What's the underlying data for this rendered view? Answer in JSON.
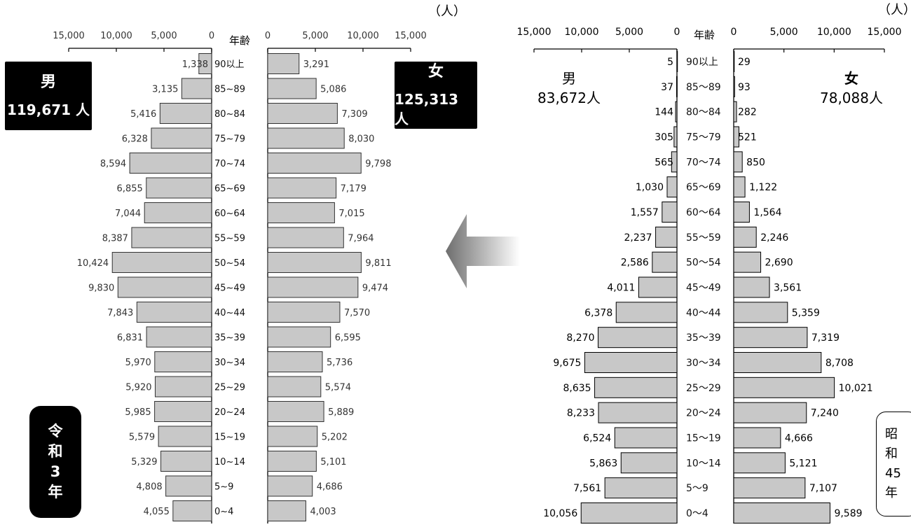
{
  "chart_data": [
    {
      "type": "bar",
      "orientation": "horizontal-population-pyramid",
      "era_label": "令和3年",
      "unit_label": "（人）",
      "age_header": "年齢",
      "x_ticks_male": [
        "15,000",
        "10,000",
        "5,000",
        "0"
      ],
      "x_ticks_female": [
        "0",
        "5,000",
        "10,000",
        "15,000"
      ],
      "xlim": [
        0,
        15000
      ],
      "categories": [
        "90以上",
        "85~89",
        "80~84",
        "75~79",
        "70~74",
        "65~69",
        "60~64",
        "55~59",
        "50~54",
        "45~49",
        "40~44",
        "35~39",
        "30~34",
        "25~29",
        "20~24",
        "15~19",
        "10~14",
        "5~9",
        "0~4"
      ],
      "series": [
        {
          "name": "男",
          "total": "119,671 人",
          "values": [
            1338,
            3135,
            5416,
            6328,
            8594,
            6855,
            7044,
            8387,
            10424,
            9830,
            7843,
            6831,
            5970,
            5920,
            5985,
            5579,
            5329,
            4808,
            4055
          ],
          "labels": [
            "1,338",
            "3,135",
            "5,416",
            "6,328",
            "8,594",
            "6,855",
            "7,044",
            "8,387",
            "10,424",
            "9,830",
            "7,843",
            "6,831",
            "5,970",
            "5,920",
            "5,985",
            "5,579",
            "5,329",
            "4,808",
            "4,055"
          ]
        },
        {
          "name": "女",
          "total": "125,313 人",
          "values": [
            3291,
            5086,
            7309,
            8030,
            9798,
            7179,
            7015,
            7964,
            9811,
            9474,
            7570,
            6595,
            5736,
            5574,
            5889,
            5202,
            5101,
            4686,
            4003
          ],
          "labels": [
            "3,291",
            "5,086",
            "7,309",
            "8,030",
            "9,798",
            "7,179",
            "7,015",
            "7,964",
            "9,811",
            "9,474",
            "7,570",
            "6,595",
            "5,736",
            "5,574",
            "5,889",
            "5,202",
            "5,101",
            "4,686",
            "4,003"
          ]
        }
      ],
      "colors": {
        "bar_fill": "#c8c8c8",
        "bar_stroke": "#333333"
      }
    },
    {
      "type": "bar",
      "orientation": "horizontal-population-pyramid",
      "era_label": "昭和45年",
      "unit_label": "（人）",
      "age_header": "年齢",
      "x_ticks_male": [
        "15,000",
        "10,000",
        "5,000",
        "0"
      ],
      "x_ticks_female": [
        "0",
        "5,000",
        "10,000",
        "15,000"
      ],
      "xlim": [
        0,
        15000
      ],
      "categories": [
        "90以上",
        "85～89",
        "80～84",
        "75～79",
        "70～74",
        "65～69",
        "60～64",
        "55～59",
        "50～54",
        "45～49",
        "40～44",
        "35～39",
        "30～34",
        "25～29",
        "20～24",
        "15～19",
        "10～14",
        "5～9",
        "0～4"
      ],
      "series": [
        {
          "name": "男",
          "total": "83,672人",
          "values": [
            5,
            37,
            144,
            305,
            565,
            1030,
            1557,
            2237,
            2586,
            4011,
            6378,
            8270,
            9675,
            8635,
            8233,
            6524,
            5863,
            7561,
            10056
          ],
          "labels": [
            "5",
            "37",
            "144",
            "305",
            "565",
            "1,030",
            "1,557",
            "2,237",
            "2,586",
            "4,011",
            "6,378",
            "8,270",
            "9,675",
            "8,635",
            "8,233",
            "6,524",
            "5,863",
            "7,561",
            "10,056"
          ]
        },
        {
          "name": "女",
          "total": "78,088人",
          "values": [
            29,
            93,
            282,
            521,
            850,
            1122,
            1564,
            2246,
            2690,
            3561,
            5359,
            7319,
            8708,
            10021,
            7240,
            4666,
            5121,
            7107,
            9589
          ],
          "labels": [
            "29",
            "93",
            "282",
            "521",
            "850",
            "1,122",
            "1,564",
            "2,246",
            "2,690",
            "3,561",
            "5,359",
            "7,319",
            "8,708",
            "10,021",
            "7,240",
            "4,666",
            "5,121",
            "7,107",
            "9,589"
          ]
        }
      ],
      "colors": {
        "bar_fill": "#c8c8c8",
        "bar_stroke": "#000000"
      }
    }
  ],
  "left_panel": {
    "male_badge": {
      "title": "男",
      "total": "119,671 人"
    },
    "female_badge": {
      "title": "女",
      "total": "125,313 人"
    },
    "era": [
      "令",
      "和",
      "3",
      "年"
    ]
  },
  "right_panel": {
    "male_label": {
      "title": "男",
      "total": "83,672人"
    },
    "female_label": {
      "title": "女",
      "total": "78,088人"
    },
    "era": [
      "昭",
      "和",
      "45",
      "年"
    ]
  },
  "arrow": {
    "direction": "left",
    "color_dark": "#6e6e6e",
    "color_light": "#ffffff"
  }
}
